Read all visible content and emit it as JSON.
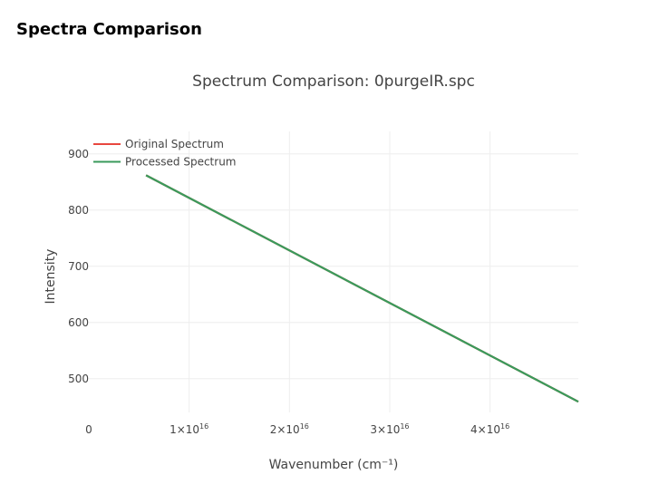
{
  "page": {
    "heading": "Spectra Comparison"
  },
  "chart_data": {
    "type": "line",
    "title": "Spectrum Comparison: 0purgeIR.spc",
    "xlabel": "Wavenumber (cm⁻¹)",
    "ylabel": "Intensity",
    "xlim": [
      0,
      4.88e+16
    ],
    "ylim": [
      440,
      940
    ],
    "x_ticks": [
      {
        "value": 0,
        "mantissa": "0",
        "exponent": ""
      },
      {
        "value": 1e+16,
        "mantissa": "1×10",
        "exponent": "16"
      },
      {
        "value": 2e+16,
        "mantissa": "2×10",
        "exponent": "16"
      },
      {
        "value": 3e+16,
        "mantissa": "3×10",
        "exponent": "16"
      },
      {
        "value": 4e+16,
        "mantissa": "4×10",
        "exponent": "16"
      }
    ],
    "y_ticks": [
      500,
      600,
      700,
      800,
      900
    ],
    "grid": true,
    "legend_position": "top-left",
    "series": [
      {
        "name": "Original Spectrum",
        "color": "#e8473f",
        "x": [
          5700000000000000.0,
          4.88e+16
        ],
        "y": [
          862,
          459
        ]
      },
      {
        "name": "Processed Spectrum",
        "color": "#3a9a5b",
        "x": [
          5700000000000000.0,
          4.88e+16
        ],
        "y": [
          862,
          459
        ]
      }
    ]
  }
}
